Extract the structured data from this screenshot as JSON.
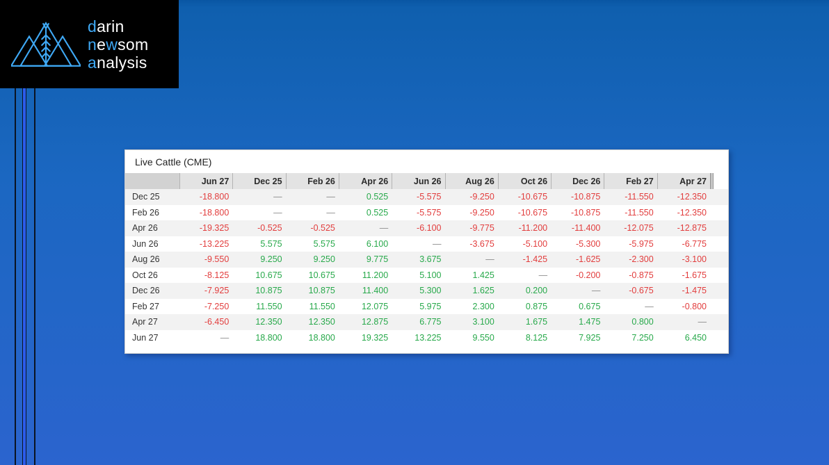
{
  "logo": {
    "accent_color": "#3fa9f5",
    "brand_words": {
      "w1a": "d",
      "w1b": "arin",
      "w2a": "n",
      "w2b": "e",
      "w2c": "w",
      "w2d": "som",
      "w3a": "a",
      "w3b": "nalysis"
    }
  },
  "background": {
    "top_color": "#0956a3",
    "bottom_color": "#2b64ce",
    "accent_line_color": "#2c5cec",
    "dark_line_color": "#0b1322"
  },
  "table": {
    "title": "Live Cattle (CME)",
    "columns": [
      "Jun 27",
      "Dec 25",
      "Feb 26",
      "Apr 26",
      "Jun 26",
      "Aug 26",
      "Oct 26",
      "Dec 26",
      "Feb 27",
      "Apr 27"
    ],
    "rows": [
      {
        "label": "Dec 25",
        "values": [
          "-18.800",
          "—",
          "—",
          "0.525",
          "-5.575",
          "-9.250",
          "-10.675",
          "-10.875",
          "-11.550",
          "-12.350"
        ]
      },
      {
        "label": "Feb 26",
        "values": [
          "-18.800",
          "—",
          "—",
          "0.525",
          "-5.575",
          "-9.250",
          "-10.675",
          "-10.875",
          "-11.550",
          "-12.350"
        ]
      },
      {
        "label": "Apr 26",
        "values": [
          "-19.325",
          "-0.525",
          "-0.525",
          "—",
          "-6.100",
          "-9.775",
          "-11.200",
          "-11.400",
          "-12.075",
          "-12.875"
        ]
      },
      {
        "label": "Jun 26",
        "values": [
          "-13.225",
          "5.575",
          "5.575",
          "6.100",
          "—",
          "-3.675",
          "-5.100",
          "-5.300",
          "-5.975",
          "-6.775"
        ]
      },
      {
        "label": "Aug 26",
        "values": [
          "-9.550",
          "9.250",
          "9.250",
          "9.775",
          "3.675",
          "—",
          "-1.425",
          "-1.625",
          "-2.300",
          "-3.100"
        ]
      },
      {
        "label": "Oct 26",
        "values": [
          "-8.125",
          "10.675",
          "10.675",
          "11.200",
          "5.100",
          "1.425",
          "—",
          "-0.200",
          "-0.875",
          "-1.675"
        ]
      },
      {
        "label": "Dec 26",
        "values": [
          "-7.925",
          "10.875",
          "10.875",
          "11.400",
          "5.300",
          "1.625",
          "0.200",
          "—",
          "-0.675",
          "-1.475"
        ]
      },
      {
        "label": "Feb 27",
        "values": [
          "-7.250",
          "11.550",
          "11.550",
          "12.075",
          "5.975",
          "2.300",
          "0.875",
          "0.675",
          "—",
          "-0.800"
        ]
      },
      {
        "label": "Apr 27",
        "values": [
          "-6.450",
          "12.350",
          "12.350",
          "12.875",
          "6.775",
          "3.100",
          "1.675",
          "1.475",
          "0.800",
          "—"
        ]
      },
      {
        "label": "Jun 27",
        "values": [
          "—",
          "18.800",
          "18.800",
          "19.325",
          "13.225",
          "9.550",
          "8.125",
          "7.925",
          "7.250",
          "6.450"
        ]
      }
    ],
    "colors": {
      "positive": "#28a94b",
      "negative": "#e23d3d",
      "neutral": "#8c8c8c"
    }
  }
}
